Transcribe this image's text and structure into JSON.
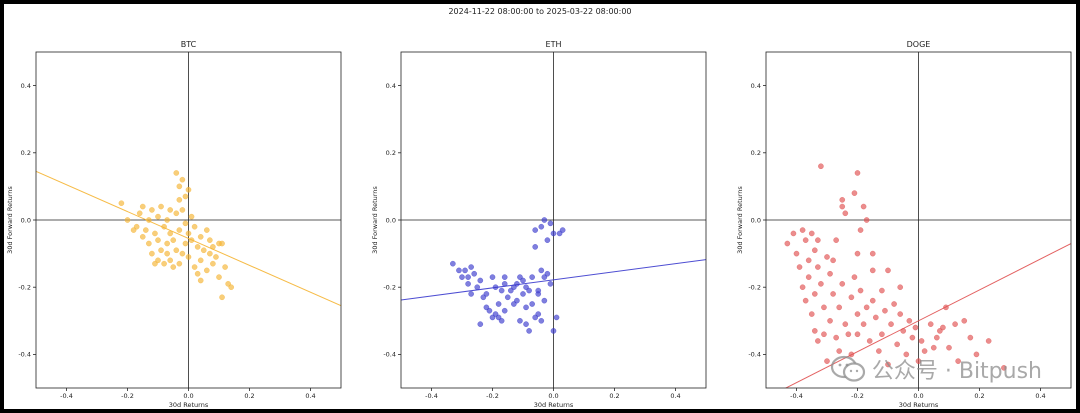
{
  "header": {
    "suptitle": "2024-11-22 08:00:00 to 2025-03-22 08:00:00"
  },
  "watermark": {
    "text": "公众号 · Bitpush",
    "icon": "wechat-icon"
  },
  "chart_data": [
    {
      "type": "scatter",
      "title": "BTC",
      "xlabel": "30d Returns",
      "ylabel": "30d Forward Returns",
      "xlim": [
        -0.5,
        0.5
      ],
      "ylim": [
        -0.5,
        0.5
      ],
      "xticks": [
        "-0.4",
        "-0.2",
        "0.0",
        "0.2",
        "0.4"
      ],
      "yticks": [
        "-0.4",
        "-0.2",
        "0.0",
        "0.2",
        "0.4"
      ],
      "color": "#f5b432",
      "fit_line": {
        "intercept": -0.055,
        "slope": -0.4
      },
      "points": [
        [
          -0.22,
          0.05
        ],
        [
          -0.2,
          0.0
        ],
        [
          -0.18,
          -0.03
        ],
        [
          -0.17,
          -0.02
        ],
        [
          -0.16,
          0.02
        ],
        [
          -0.15,
          -0.05
        ],
        [
          -0.15,
          0.04
        ],
        [
          -0.14,
          -0.03
        ],
        [
          -0.13,
          0.0
        ],
        [
          -0.13,
          -0.07
        ],
        [
          -0.12,
          0.03
        ],
        [
          -0.12,
          -0.1
        ],
        [
          -0.11,
          -0.04
        ],
        [
          -0.11,
          -0.13
        ],
        [
          -0.1,
          0.01
        ],
        [
          -0.1,
          -0.06
        ],
        [
          -0.1,
          -0.12
        ],
        [
          -0.09,
          -0.09
        ],
        [
          -0.09,
          0.04
        ],
        [
          -0.08,
          -0.02
        ],
        [
          -0.08,
          -0.13
        ],
        [
          -0.07,
          0.0
        ],
        [
          -0.07,
          -0.07
        ],
        [
          -0.07,
          -0.1
        ],
        [
          -0.06,
          -0.04
        ],
        [
          -0.06,
          0.03
        ],
        [
          -0.06,
          -0.12
        ],
        [
          -0.05,
          -0.06
        ],
        [
          -0.05,
          -0.14
        ],
        [
          -0.04,
          0.02
        ],
        [
          -0.04,
          -0.09
        ],
        [
          -0.04,
          0.14
        ],
        [
          -0.03,
          0.1
        ],
        [
          -0.03,
          0.06
        ],
        [
          -0.03,
          -0.03
        ],
        [
          -0.03,
          -0.13
        ],
        [
          -0.02,
          0.12
        ],
        [
          -0.02,
          -0.1
        ],
        [
          -0.02,
          0.03
        ],
        [
          -0.01,
          -0.07
        ],
        [
          -0.01,
          0.07
        ],
        [
          -0.01,
          -0.01
        ],
        [
          0.0,
          0.09
        ],
        [
          0.0,
          -0.04
        ],
        [
          0.0,
          -0.11
        ],
        [
          0.01,
          -0.06
        ],
        [
          0.01,
          0.01
        ],
        [
          0.02,
          -0.14
        ],
        [
          0.02,
          -0.02
        ],
        [
          0.03,
          -0.08
        ],
        [
          0.03,
          -0.16
        ],
        [
          0.04,
          -0.05
        ],
        [
          0.04,
          -0.12
        ],
        [
          0.04,
          -0.18
        ],
        [
          0.05,
          -0.09
        ],
        [
          0.06,
          -0.03
        ],
        [
          0.06,
          -0.15
        ],
        [
          0.07,
          -0.1
        ],
        [
          0.07,
          -0.06
        ],
        [
          0.08,
          -0.13
        ],
        [
          0.08,
          -0.08
        ],
        [
          0.09,
          -0.11
        ],
        [
          0.1,
          -0.07
        ],
        [
          0.1,
          -0.17
        ],
        [
          0.11,
          -0.23
        ],
        [
          0.11,
          -0.07
        ],
        [
          0.12,
          -0.14
        ],
        [
          0.13,
          -0.19
        ],
        [
          0.14,
          -0.2
        ]
      ]
    },
    {
      "type": "scatter",
      "title": "ETH",
      "xlabel": "30d Returns",
      "ylabel": "30d Forward Returns",
      "xlim": [
        -0.5,
        0.5
      ],
      "ylim": [
        -0.5,
        0.5
      ],
      "xticks": [
        "-0.4",
        "-0.2",
        "0.0",
        "0.2",
        "0.4"
      ],
      "yticks": [
        "-0.4",
        "-0.2",
        "0.0",
        "0.2",
        "0.4"
      ],
      "color": "#3a3acd",
      "fit_line": {
        "intercept": -0.178,
        "slope": 0.12
      },
      "points": [
        [
          -0.33,
          -0.13
        ],
        [
          -0.31,
          -0.15
        ],
        [
          -0.3,
          -0.17
        ],
        [
          -0.29,
          -0.15
        ],
        [
          -0.28,
          -0.17
        ],
        [
          -0.28,
          -0.19
        ],
        [
          -0.27,
          -0.14
        ],
        [
          -0.27,
          -0.22
        ],
        [
          -0.26,
          -0.16
        ],
        [
          -0.25,
          -0.2
        ],
        [
          -0.24,
          -0.18
        ],
        [
          -0.23,
          -0.23
        ],
        [
          -0.22,
          -0.22
        ],
        [
          -0.21,
          -0.27
        ],
        [
          -0.2,
          -0.29
        ],
        [
          -0.2,
          -0.17
        ],
        [
          -0.19,
          -0.2
        ],
        [
          -0.19,
          -0.28
        ],
        [
          -0.18,
          -0.25
        ],
        [
          -0.18,
          -0.29
        ],
        [
          -0.17,
          -0.21
        ],
        [
          -0.17,
          -0.3
        ],
        [
          -0.16,
          -0.27
        ],
        [
          -0.16,
          -0.19
        ],
        [
          -0.15,
          -0.23
        ],
        [
          -0.14,
          -0.21
        ],
        [
          -0.13,
          -0.2
        ],
        [
          -0.13,
          -0.25
        ],
        [
          -0.12,
          -0.19
        ],
        [
          -0.12,
          -0.24
        ],
        [
          -0.11,
          -0.3
        ],
        [
          -0.1,
          -0.18
        ],
        [
          -0.1,
          -0.22
        ],
        [
          -0.09,
          -0.2
        ],
        [
          -0.09,
          -0.26
        ],
        [
          -0.08,
          -0.21
        ],
        [
          -0.08,
          -0.33
        ],
        [
          -0.07,
          -0.17
        ],
        [
          -0.07,
          -0.25
        ],
        [
          -0.06,
          -0.08
        ],
        [
          -0.06,
          -0.03
        ],
        [
          -0.06,
          -0.29
        ],
        [
          -0.05,
          -0.21
        ],
        [
          -0.05,
          -0.28
        ],
        [
          -0.04,
          -0.15
        ],
        [
          -0.04,
          -0.02
        ],
        [
          -0.04,
          -0.3
        ],
        [
          -0.03,
          0.0
        ],
        [
          -0.03,
          -0.17
        ],
        [
          -0.03,
          -0.24
        ],
        [
          -0.02,
          -0.06
        ],
        [
          -0.02,
          -0.16
        ],
        [
          -0.01,
          -0.01
        ],
        [
          -0.01,
          -0.19
        ],
        [
          0.0,
          -0.04
        ],
        [
          0.0,
          -0.33
        ],
        [
          0.01,
          -0.29
        ],
        [
          0.02,
          -0.04
        ],
        [
          0.03,
          -0.03
        ],
        [
          -0.09,
          -0.31
        ],
        [
          -0.22,
          -0.26
        ],
        [
          -0.24,
          -0.31
        ],
        [
          -0.16,
          -0.17
        ],
        [
          -0.05,
          -0.22
        ],
        [
          -0.11,
          -0.17
        ]
      ]
    },
    {
      "type": "scatter",
      "title": "DOGE",
      "xlabel": "30d Returns",
      "ylabel": "30d Forward Returns",
      "xlim": [
        -0.5,
        0.5
      ],
      "ylim": [
        -0.5,
        0.5
      ],
      "xticks": [
        "-0.4",
        "-0.2",
        "0.0",
        "0.2",
        "0.4"
      ],
      "yticks": [
        "-0.4",
        "-0.2",
        "0.0",
        "0.2",
        "0.4"
      ],
      "color": "#e05050",
      "fit_line": {
        "intercept": -0.3,
        "slope": 0.46,
        "_note": ""
      },
      "points": [
        [
          -0.43,
          -0.07
        ],
        [
          -0.41,
          -0.04
        ],
        [
          -0.4,
          -0.1
        ],
        [
          -0.39,
          -0.14
        ],
        [
          -0.38,
          -0.03
        ],
        [
          -0.38,
          -0.2
        ],
        [
          -0.37,
          -0.06
        ],
        [
          -0.37,
          -0.24
        ],
        [
          -0.36,
          -0.12
        ],
        [
          -0.36,
          -0.17
        ],
        [
          -0.35,
          -0.04
        ],
        [
          -0.35,
          -0.28
        ],
        [
          -0.34,
          -0.09
        ],
        [
          -0.34,
          -0.22
        ],
        [
          -0.34,
          -0.33
        ],
        [
          -0.33,
          -0.06
        ],
        [
          -0.33,
          -0.14
        ],
        [
          -0.33,
          -0.36
        ],
        [
          -0.32,
          0.16
        ],
        [
          -0.32,
          -0.19
        ],
        [
          -0.31,
          -0.26
        ],
        [
          -0.31,
          -0.34
        ],
        [
          -0.3,
          -0.11
        ],
        [
          -0.3,
          -0.42
        ],
        [
          -0.29,
          -0.16
        ],
        [
          -0.29,
          -0.3
        ],
        [
          -0.28,
          -0.22
        ],
        [
          -0.27,
          -0.35
        ],
        [
          -0.27,
          -0.06
        ],
        [
          -0.26,
          -0.26
        ],
        [
          -0.26,
          -0.39
        ],
        [
          -0.25,
          -0.19
        ],
        [
          -0.25,
          0.06
        ],
        [
          -0.25,
          0.04
        ],
        [
          -0.24,
          -0.31
        ],
        [
          -0.24,
          0.02
        ],
        [
          -0.23,
          -0.34
        ],
        [
          -0.22,
          -0.23
        ],
        [
          -0.22,
          -0.4
        ],
        [
          -0.21,
          -0.17
        ],
        [
          -0.21,
          0.08
        ],
        [
          -0.2,
          -0.28
        ],
        [
          -0.2,
          0.14
        ],
        [
          -0.2,
          -0.34
        ],
        [
          -0.19,
          -0.21
        ],
        [
          -0.19,
          -0.03
        ],
        [
          -0.18,
          -0.31
        ],
        [
          -0.18,
          0.04
        ],
        [
          -0.17,
          -0.26
        ],
        [
          -0.17,
          0.0
        ],
        [
          -0.16,
          -0.36
        ],
        [
          -0.15,
          -0.24
        ],
        [
          -0.15,
          -0.1
        ],
        [
          -0.14,
          -0.29
        ],
        [
          -0.13,
          -0.39
        ],
        [
          -0.12,
          -0.21
        ],
        [
          -0.12,
          -0.34
        ],
        [
          -0.11,
          -0.27
        ],
        [
          -0.1,
          -0.43
        ],
        [
          -0.09,
          -0.31
        ],
        [
          -0.08,
          -0.25
        ],
        [
          -0.07,
          -0.37
        ],
        [
          -0.06,
          -0.28
        ],
        [
          -0.05,
          -0.33
        ],
        [
          -0.04,
          -0.4
        ],
        [
          -0.03,
          -0.3
        ],
        [
          -0.02,
          -0.35
        ],
        [
          -0.01,
          -0.32
        ],
        [
          0.0,
          -0.42
        ],
        [
          0.01,
          -0.36
        ],
        [
          0.02,
          -0.39
        ],
        [
          0.04,
          -0.31
        ],
        [
          0.05,
          -0.38
        ],
        [
          0.06,
          -0.35
        ],
        [
          0.07,
          -0.33
        ],
        [
          0.08,
          -0.32
        ],
        [
          0.09,
          -0.26
        ],
        [
          0.1,
          -0.38
        ],
        [
          0.12,
          -0.31
        ],
        [
          0.13,
          -0.42
        ],
        [
          0.15,
          -0.3
        ],
        [
          0.17,
          -0.35
        ],
        [
          0.19,
          -0.4
        ],
        [
          0.23,
          -0.36
        ],
        [
          0.28,
          -0.44
        ],
        [
          -0.06,
          -0.2
        ],
        [
          -0.1,
          -0.15
        ],
        [
          -0.2,
          -0.1
        ],
        [
          -0.28,
          -0.12
        ],
        [
          -0.15,
          -0.15
        ]
      ]
    }
  ]
}
